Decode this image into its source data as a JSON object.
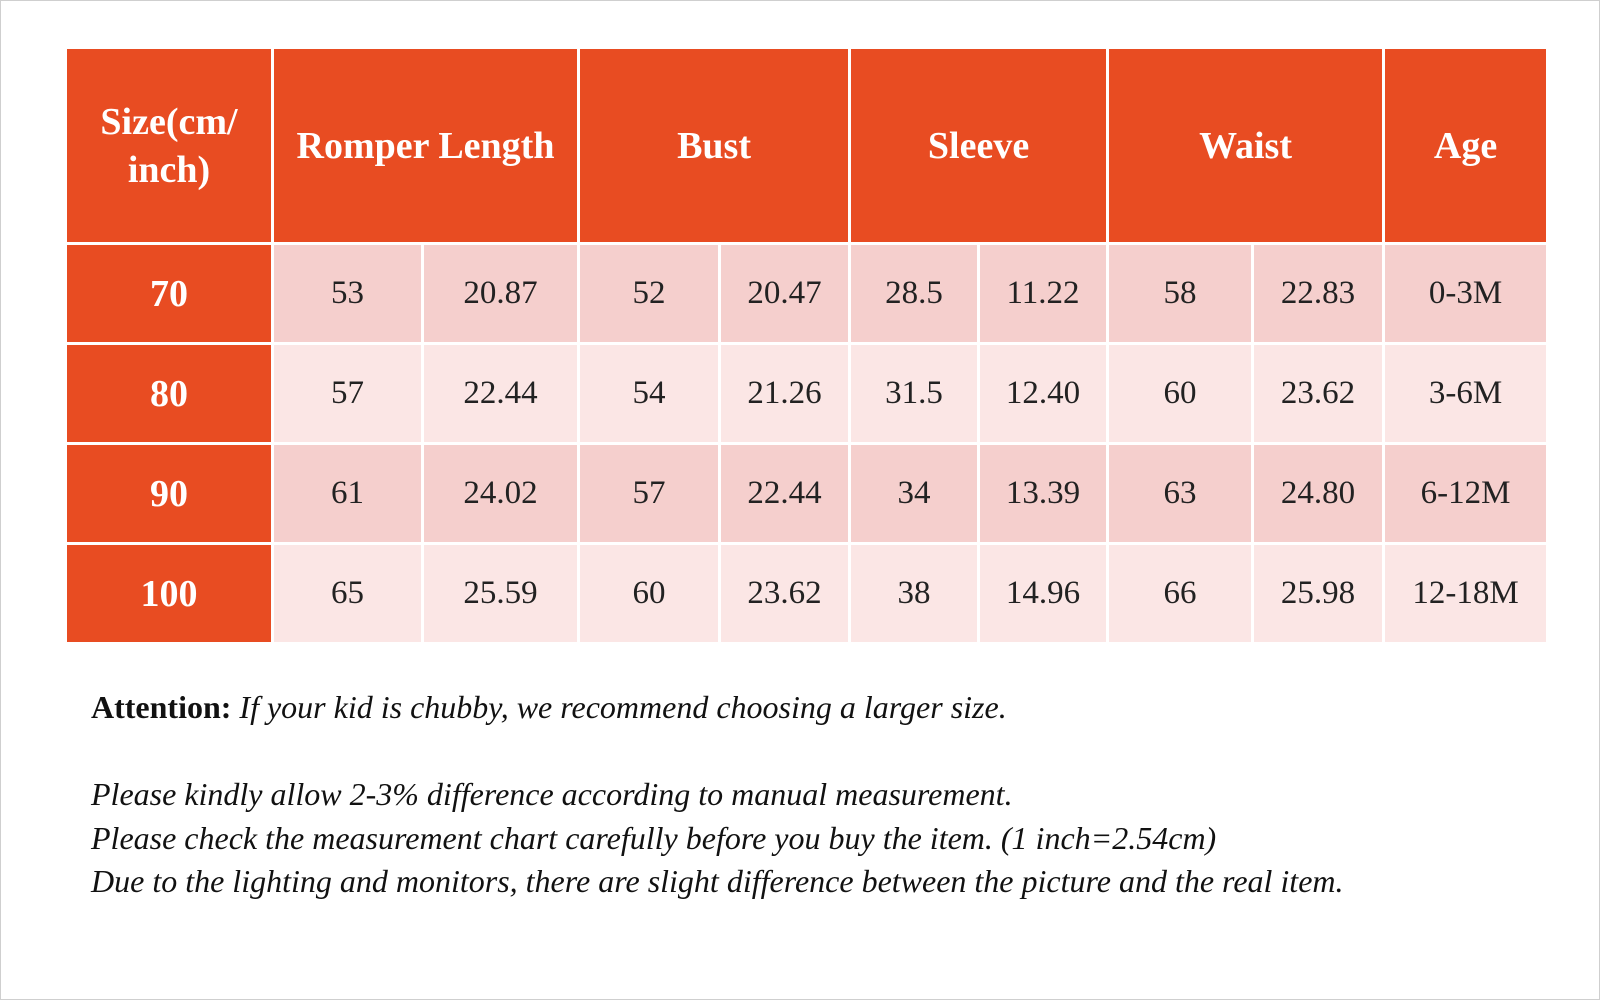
{
  "table": {
    "header": [
      "Size(cm/ inch)",
      "Romper Length",
      "Bust",
      "Sleeve",
      "Waist",
      "Age"
    ],
    "rows": [
      [
        "70",
        "53",
        "20.87",
        "52",
        "20.47",
        "28.5",
        "11.22",
        "58",
        "22.83",
        "0-3M"
      ],
      [
        "80",
        "57",
        "22.44",
        "54",
        "21.26",
        "31.5",
        "12.40",
        "60",
        "23.62",
        "3-6M"
      ],
      [
        "90",
        "61",
        "24.02",
        "57",
        "22.44",
        "34",
        "13.39",
        "63",
        "24.80",
        "6-12M"
      ],
      [
        "100",
        "65",
        "25.59",
        "60",
        "23.62",
        "38",
        "14.96",
        "66",
        "25.98",
        "12-18M"
      ]
    ]
  },
  "notes": {
    "attention_label": "Attention:",
    "attention_text": "If your kid is chubby, we recommend choosing a larger size.",
    "lines": [
      "Please kindly allow 2-3% difference according to manual measurement.",
      "Please check the measurement chart carefully before you buy the item. (1 inch=2.54cm)",
      "Due to the lighting and monitors, there are slight difference between the picture and the real item."
    ]
  }
}
